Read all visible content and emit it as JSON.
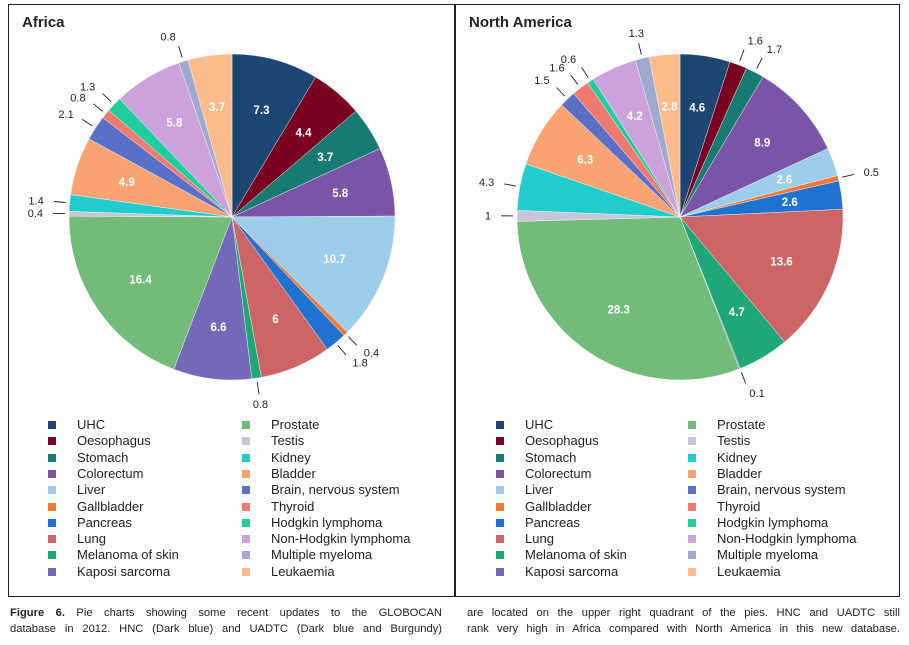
{
  "figure": {
    "caption_label": "Figure 6.",
    "caption_left_line1": " Pie charts showing some recent updates to the GLOBOCAN",
    "caption_left_line2": "database in 2012. HNC (Dark blue) and UADTC (Dark blue and Burgundy)",
    "caption_right_line1": "are located on the upper right quadrant of the pies. HNC and UADTC still",
    "caption_right_line2": "rank very high in Africa compared with North America in this new database."
  },
  "chart_data": [
    {
      "type": "pie",
      "title": "Africa",
      "start": "12 o'clock",
      "direction": "clockwise",
      "categories": [
        "UHC",
        "Oesophagus",
        "Stomach",
        "Colorectum",
        "Liver",
        "Gallbladder",
        "Pancreas",
        "Lung",
        "Melanoma of skin",
        "Kaposi sarcoma",
        "Prostate",
        "Testis",
        "Kidney",
        "Bladder",
        "Brain, nervous system",
        "Thyroid",
        "Hodgkin lymphoma",
        "Non-Hodgkin lymphoma",
        "Multiple myeloma",
        "Leukaemia"
      ],
      "values": [
        7.3,
        4.4,
        3.7,
        5.8,
        10.7,
        0.4,
        1.8,
        6,
        0.8,
        6.6,
        16.4,
        0.4,
        1.4,
        4.9,
        2.1,
        0.8,
        1.3,
        5.8,
        0.8,
        3.7
      ],
      "value_labels": [
        "7.3",
        "4.4",
        "3.7",
        "5.8",
        "10.7",
        "0.4",
        "1.8",
        "6",
        "0.8",
        "6.6",
        "16.4",
        "0.4",
        "1.4",
        "4.9",
        "2.1",
        "0.8",
        "1.3",
        "5.8",
        "0.8",
        "3.7"
      ],
      "label_inside": [
        true,
        true,
        true,
        true,
        true,
        false,
        false,
        true,
        false,
        true,
        true,
        false,
        false,
        true,
        false,
        false,
        false,
        true,
        false,
        true
      ],
      "legend": "bottom"
    },
    {
      "type": "pie",
      "title": "North America",
      "start": "12 o'clock",
      "direction": "clockwise",
      "categories": [
        "UHC",
        "Oesophagus",
        "Stomach",
        "Colorectum",
        "Liver",
        "Gallbladder",
        "Pancreas",
        "Lung",
        "Melanoma of skin",
        "Kaposi sarcoma",
        "Prostate",
        "Testis",
        "Kidney",
        "Bladder",
        "Brain, nervous system",
        "Thyroid",
        "Hodgkin lymphoma",
        "Non-Hodgkin lymphoma",
        "Multiple myeloma",
        "Leukaemia"
      ],
      "values": [
        4.6,
        1.6,
        1.7,
        8.9,
        2.6,
        0.5,
        2.6,
        13.6,
        4.7,
        0.1,
        28.3,
        1,
        4.3,
        6.3,
        1.5,
        1.6,
        0.6,
        4.2,
        1.3,
        2.8
      ],
      "value_labels": [
        "4.6",
        "1.6",
        "1.7",
        "8.9",
        "2.6",
        "0.5",
        "2.6",
        "13.6",
        "4.7",
        "0.1",
        "28.3",
        "1",
        "4.3",
        "6.3",
        "1.5",
        "1.6",
        "0.6",
        "4.2",
        "1.3",
        "2.8"
      ],
      "label_inside": [
        true,
        false,
        false,
        true,
        true,
        false,
        true,
        true,
        true,
        false,
        true,
        false,
        false,
        true,
        false,
        false,
        false,
        true,
        false,
        true
      ],
      "legend": "bottom"
    }
  ],
  "colors": [
    "#1d4672",
    "#7a0021",
    "#177a73",
    "#7a55a7",
    "#9ccdea",
    "#f07a35",
    "#1f72cf",
    "#cd6566",
    "#1fa778",
    "#7468b8",
    "#72bb78",
    "#c7c5da",
    "#20cdcc",
    "#f9a272",
    "#5a70c6",
    "#f07a70",
    "#1fcd9f",
    "#cba2dc",
    "#a2a9cf",
    "#fbbb8b"
  ],
  "legend_items": [
    "UHC",
    "Oesophagus",
    "Stomach",
    "Colorectum",
    "Liver",
    "Gallbladder",
    "Pancreas",
    "Lung",
    "Melanoma of skin",
    "Kaposi sarcoma",
    "Prostate",
    "Testis",
    "Kidney",
    "Bladder",
    "Brain, nervous system",
    "Thyroid",
    "Hodgkin lymphoma",
    "Non-Hodgkin lymphoma",
    "Multiple myeloma",
    "Leukaemia"
  ]
}
